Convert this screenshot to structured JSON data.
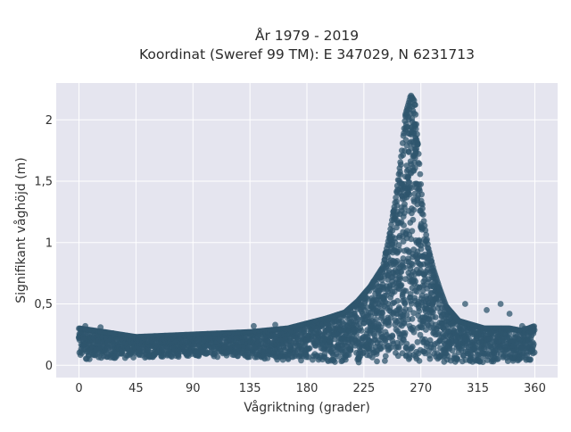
{
  "chart_data": {
    "type": "scatter",
    "title_lines": [
      "År 1979 - 2019",
      "Koordinat (Sweref 99 TM): E 347029, N 6231713"
    ],
    "xlabel": "Vågriktning (grader)",
    "ylabel": "Signifikant våghöjd (m)",
    "xlim": [
      -18,
      378
    ],
    "ylim": [
      -0.1,
      2.3
    ],
    "x_ticks": [
      0,
      45,
      90,
      135,
      180,
      225,
      270,
      315,
      360
    ],
    "x_tick_labels": [
      "0",
      "45",
      "90",
      "135",
      "180",
      "225",
      "270",
      "315",
      "360"
    ],
    "y_ticks": [
      0,
      0.5,
      1,
      1.5,
      2
    ],
    "y_tick_labels": [
      "0",
      "0,5",
      "1",
      "1,5",
      "2"
    ],
    "grid": true,
    "colors": {
      "marker": "#2f566e",
      "plot_background": "#e5e5ef",
      "grid": "#ffffff"
    },
    "envelope": {
      "direction": [
        0,
        20,
        45,
        90,
        135,
        165,
        180,
        195,
        210,
        220,
        230,
        240,
        245,
        250,
        255,
        258,
        262,
        265,
        268,
        272,
        276,
        280,
        285,
        290,
        300,
        310,
        320,
        330,
        340,
        350,
        360
      ],
      "max_height": [
        0.3,
        0.27,
        0.23,
        0.25,
        0.27,
        0.3,
        0.34,
        0.38,
        0.43,
        0.52,
        0.64,
        0.8,
        1.05,
        1.35,
        1.75,
        2.05,
        2.2,
        2.15,
        1.75,
        1.2,
        0.95,
        0.78,
        0.62,
        0.48,
        0.36,
        0.33,
        0.3,
        0.3,
        0.3,
        0.28,
        0.32
      ],
      "min_height": [
        0.04,
        0.05,
        0.06,
        0.07,
        0.06,
        0.04,
        0.03,
        0.02,
        0.02,
        0.02,
        0.02,
        0.03,
        0.03,
        0.03,
        0.03,
        0.03,
        0.03,
        0.03,
        0.03,
        0.03,
        0.03,
        0.03,
        0.02,
        0.02,
        0.02,
        0.02,
        0.02,
        0.03,
        0.03,
        0.04,
        0.04
      ]
    }
  }
}
